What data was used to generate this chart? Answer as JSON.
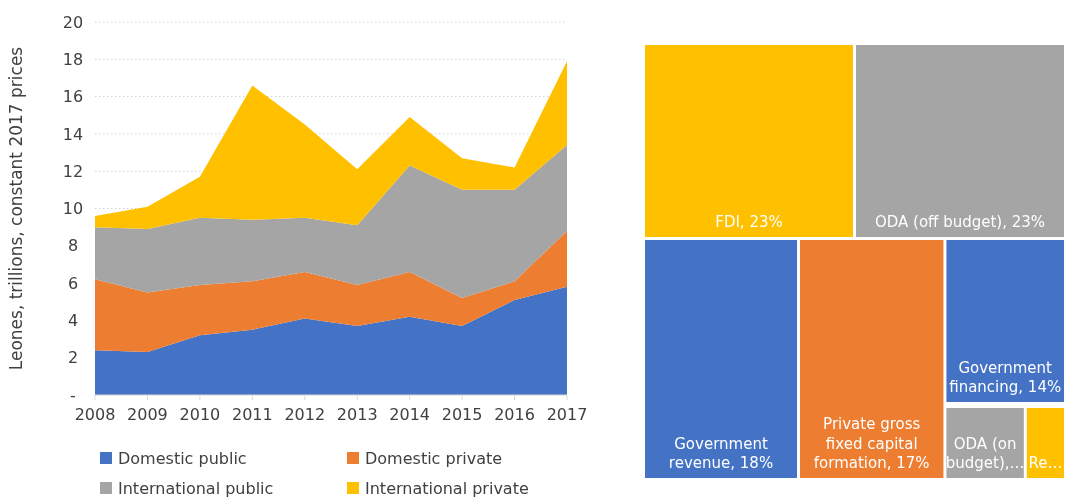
{
  "chart_data": [
    {
      "type": "area",
      "stacked": true,
      "ylabel": "Leones, trillions, constant 2017 prices",
      "categories": [
        "2008",
        "2009",
        "2010",
        "2011",
        "2012",
        "2013",
        "2014",
        "2015",
        "2016",
        "2017"
      ],
      "series": [
        {
          "name": "Domestic public",
          "color": "#4472c4",
          "values": [
            2.4,
            2.3,
            3.2,
            3.5,
            4.1,
            3.7,
            4.2,
            3.7,
            5.1,
            5.8
          ]
        },
        {
          "name": "Domestic private",
          "color": "#ed7d31",
          "values": [
            3.8,
            3.2,
            2.7,
            2.6,
            2.5,
            2.2,
            2.4,
            1.5,
            1.0,
            3.0
          ]
        },
        {
          "name": "International public",
          "color": "#a5a5a5",
          "values": [
            2.8,
            3.4,
            3.6,
            3.3,
            2.9,
            3.2,
            5.7,
            5.8,
            4.9,
            4.6
          ]
        },
        {
          "name": "International private",
          "color": "#ffc000",
          "values": [
            0.6,
            1.2,
            2.2,
            7.2,
            5.0,
            3.0,
            2.6,
            1.7,
            1.2,
            4.5
          ]
        }
      ],
      "ylim": [
        0,
        20
      ],
      "yticks": [
        {
          "value": 0,
          "label": "-"
        },
        2,
        4,
        6,
        8,
        10,
        12,
        14,
        16,
        18,
        20
      ],
      "grid": "y",
      "legend": "bottom"
    },
    {
      "type": "other",
      "categories": [
        "FDI",
        "ODA (off budget)",
        "Government revenue",
        "Private gross fixed capital formation",
        "Government financing",
        "ODA (on budget),…",
        "Re…"
      ],
      "values": [
        23,
        23,
        18,
        17,
        14,
        null,
        null
      ],
      "value_labels": [
        ", 23%",
        ", 23%",
        ", 18%",
        ", 17%",
        ", 14%",
        null,
        null
      ],
      "colors": [
        "#ffc000",
        "#a5a5a5",
        "#4472c4",
        "#ed7d31",
        "#4472c4",
        "#a5a5a5",
        "#ffc000"
      ]
    }
  ]
}
